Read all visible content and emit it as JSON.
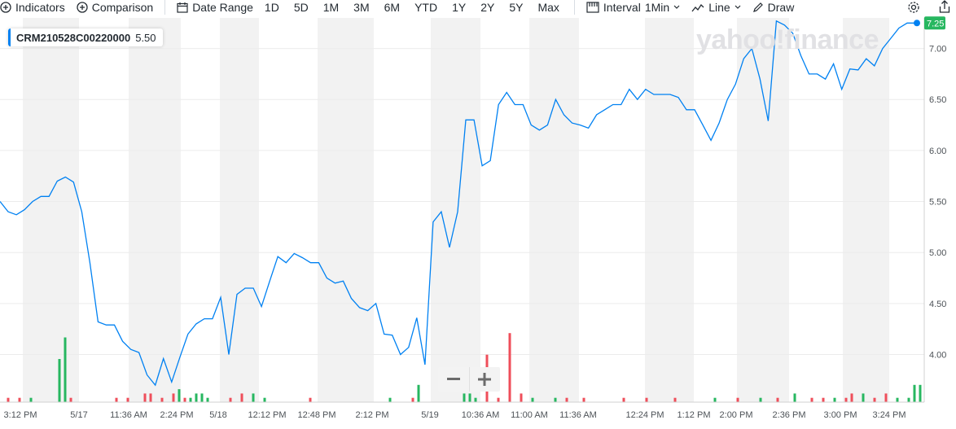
{
  "toolbar": {
    "indicators": "Indicators",
    "comparison": "Comparison",
    "date_range": "Date Range",
    "ranges": [
      "1D",
      "5D",
      "1M",
      "3M",
      "6M",
      "YTD",
      "1Y",
      "2Y",
      "5Y",
      "Max"
    ],
    "interval_label": "Interval",
    "interval_value": "1Min",
    "chart_type": "Line",
    "draw": "Draw"
  },
  "symbol": {
    "name": "CRM210528C00220000",
    "value": "5.50",
    "accent": "#0081f2"
  },
  "watermark": "yahoo!finance",
  "colors": {
    "line": "#0081f2",
    "volume_up": "#27b760",
    "volume_down": "#ef4e5a",
    "band": "#f2f2f2"
  },
  "chart_data": {
    "type": "line",
    "title": "",
    "xlabel": "",
    "ylabel": "",
    "ylim": [
      3.6,
      7.3
    ],
    "yticks": [
      "4.00",
      "4.50",
      "5.00",
      "5.50",
      "6.00",
      "6.50",
      "7.00"
    ],
    "xticks": [
      "3:12 PM",
      "5/17",
      "11:36 AM",
      "2:24 PM",
      "5/18",
      "12:12 PM",
      "12:48 PM",
      "2:12 PM",
      "5/19",
      "10:36 AM",
      "11:00 AM",
      "11:36 AM",
      "12:24 PM",
      "1:12 PM",
      "2:00 PM",
      "2:36 PM",
      "3:00 PM",
      "3:24 PM"
    ],
    "last_price_label": "7.25",
    "grid": true,
    "series": [
      {
        "values": [
          5.5,
          5.4,
          5.37,
          5.42,
          5.5,
          5.55,
          5.55,
          5.7,
          5.74,
          5.69,
          5.4,
          4.9,
          4.32,
          4.29,
          4.29,
          4.13,
          4.05,
          4.02,
          3.8,
          3.7,
          3.96,
          3.73,
          3.97,
          4.2,
          4.3,
          4.35,
          4.35,
          4.56,
          4.0,
          4.59,
          4.65,
          4.65,
          4.47,
          4.72,
          4.96,
          4.9,
          4.99,
          4.95,
          4.9,
          4.9,
          4.75,
          4.7,
          4.72,
          4.55,
          4.46,
          4.43,
          4.5,
          4.2,
          4.19,
          4.0,
          4.07,
          4.36,
          3.9,
          5.3,
          5.4,
          5.05,
          5.4,
          6.3,
          6.3,
          5.85,
          5.9,
          6.45,
          6.57,
          6.45,
          6.45,
          6.25,
          6.2,
          6.25,
          6.5,
          6.35,
          6.27,
          6.25,
          6.22,
          6.35,
          6.4,
          6.45,
          6.45,
          6.6,
          6.5,
          6.6,
          6.55,
          6.55,
          6.55,
          6.52,
          6.4,
          6.4,
          6.25,
          6.1,
          6.27,
          6.5,
          6.65,
          6.9,
          7.0,
          6.7,
          6.29,
          7.27,
          7.23,
          7.15,
          6.93,
          6.75,
          6.75,
          6.7,
          6.85,
          6.6,
          6.8,
          6.79,
          6.9,
          6.83,
          7.0,
          7.1,
          7.2,
          7.25,
          7.25
        ]
      }
    ],
    "volume": [
      {
        "i": 0,
        "v": 1,
        "up": false
      },
      {
        "i": 2,
        "v": 1,
        "up": false
      },
      {
        "i": 4,
        "v": 1,
        "up": true
      },
      {
        "i": 9,
        "v": 10,
        "up": true
      },
      {
        "i": 10,
        "v": 15,
        "up": true
      },
      {
        "i": 11,
        "v": 1,
        "up": false
      },
      {
        "i": 19,
        "v": 1,
        "up": false
      },
      {
        "i": 21,
        "v": 1,
        "up": false
      },
      {
        "i": 24,
        "v": 2,
        "up": false
      },
      {
        "i": 25,
        "v": 2,
        "up": false
      },
      {
        "i": 27,
        "v": 1,
        "up": false
      },
      {
        "i": 29,
        "v": 2,
        "up": false
      },
      {
        "i": 30,
        "v": 3,
        "up": true
      },
      {
        "i": 31,
        "v": 1,
        "up": false
      },
      {
        "i": 32,
        "v": 1,
        "up": true
      },
      {
        "i": 33,
        "v": 2,
        "up": true
      },
      {
        "i": 34,
        "v": 2,
        "up": true
      },
      {
        "i": 35,
        "v": 1,
        "up": true
      },
      {
        "i": 39,
        "v": 1,
        "up": false
      },
      {
        "i": 41,
        "v": 2,
        "up": false
      },
      {
        "i": 43,
        "v": 2,
        "up": true
      },
      {
        "i": 45,
        "v": 1,
        "up": true
      },
      {
        "i": 53,
        "v": 1,
        "up": false
      },
      {
        "i": 67,
        "v": 1,
        "up": true
      },
      {
        "i": 71,
        "v": 1,
        "up": false
      },
      {
        "i": 72,
        "v": 4,
        "up": true
      },
      {
        "i": 80,
        "v": 2,
        "up": true
      },
      {
        "i": 81,
        "v": 2,
        "up": true
      },
      {
        "i": 82,
        "v": 1,
        "up": true
      },
      {
        "i": 84,
        "v": 11,
        "up": false
      },
      {
        "i": 86,
        "v": 1,
        "up": false
      },
      {
        "i": 88,
        "v": 16,
        "up": false
      },
      {
        "i": 90,
        "v": 2,
        "up": false
      },
      {
        "i": 92,
        "v": 1,
        "up": true
      },
      {
        "i": 96,
        "v": 1,
        "up": true
      },
      {
        "i": 98,
        "v": 1,
        "up": false
      },
      {
        "i": 101,
        "v": 1,
        "up": false
      },
      {
        "i": 108,
        "v": 1,
        "up": false
      },
      {
        "i": 112,
        "v": 1,
        "up": false
      },
      {
        "i": 117,
        "v": 1,
        "up": false
      },
      {
        "i": 124,
        "v": 1,
        "up": true
      },
      {
        "i": 128,
        "v": 1,
        "up": false
      },
      {
        "i": 132,
        "v": 1,
        "up": true
      },
      {
        "i": 135,
        "v": 1,
        "up": false
      },
      {
        "i": 138,
        "v": 2,
        "up": true
      },
      {
        "i": 141,
        "v": 1,
        "up": false
      },
      {
        "i": 143,
        "v": 1,
        "up": false
      },
      {
        "i": 145,
        "v": 1,
        "up": true
      },
      {
        "i": 147,
        "v": 1,
        "up": false
      },
      {
        "i": 148,
        "v": 2,
        "up": false
      },
      {
        "i": 150,
        "v": 2,
        "up": true
      },
      {
        "i": 152,
        "v": 1,
        "up": false
      },
      {
        "i": 154,
        "v": 2,
        "up": false
      },
      {
        "i": 156,
        "v": 1,
        "up": true
      },
      {
        "i": 158,
        "v": 1,
        "up": true
      },
      {
        "i": 159,
        "v": 4,
        "up": true
      },
      {
        "i": 160,
        "v": 4,
        "up": true
      }
    ]
  }
}
